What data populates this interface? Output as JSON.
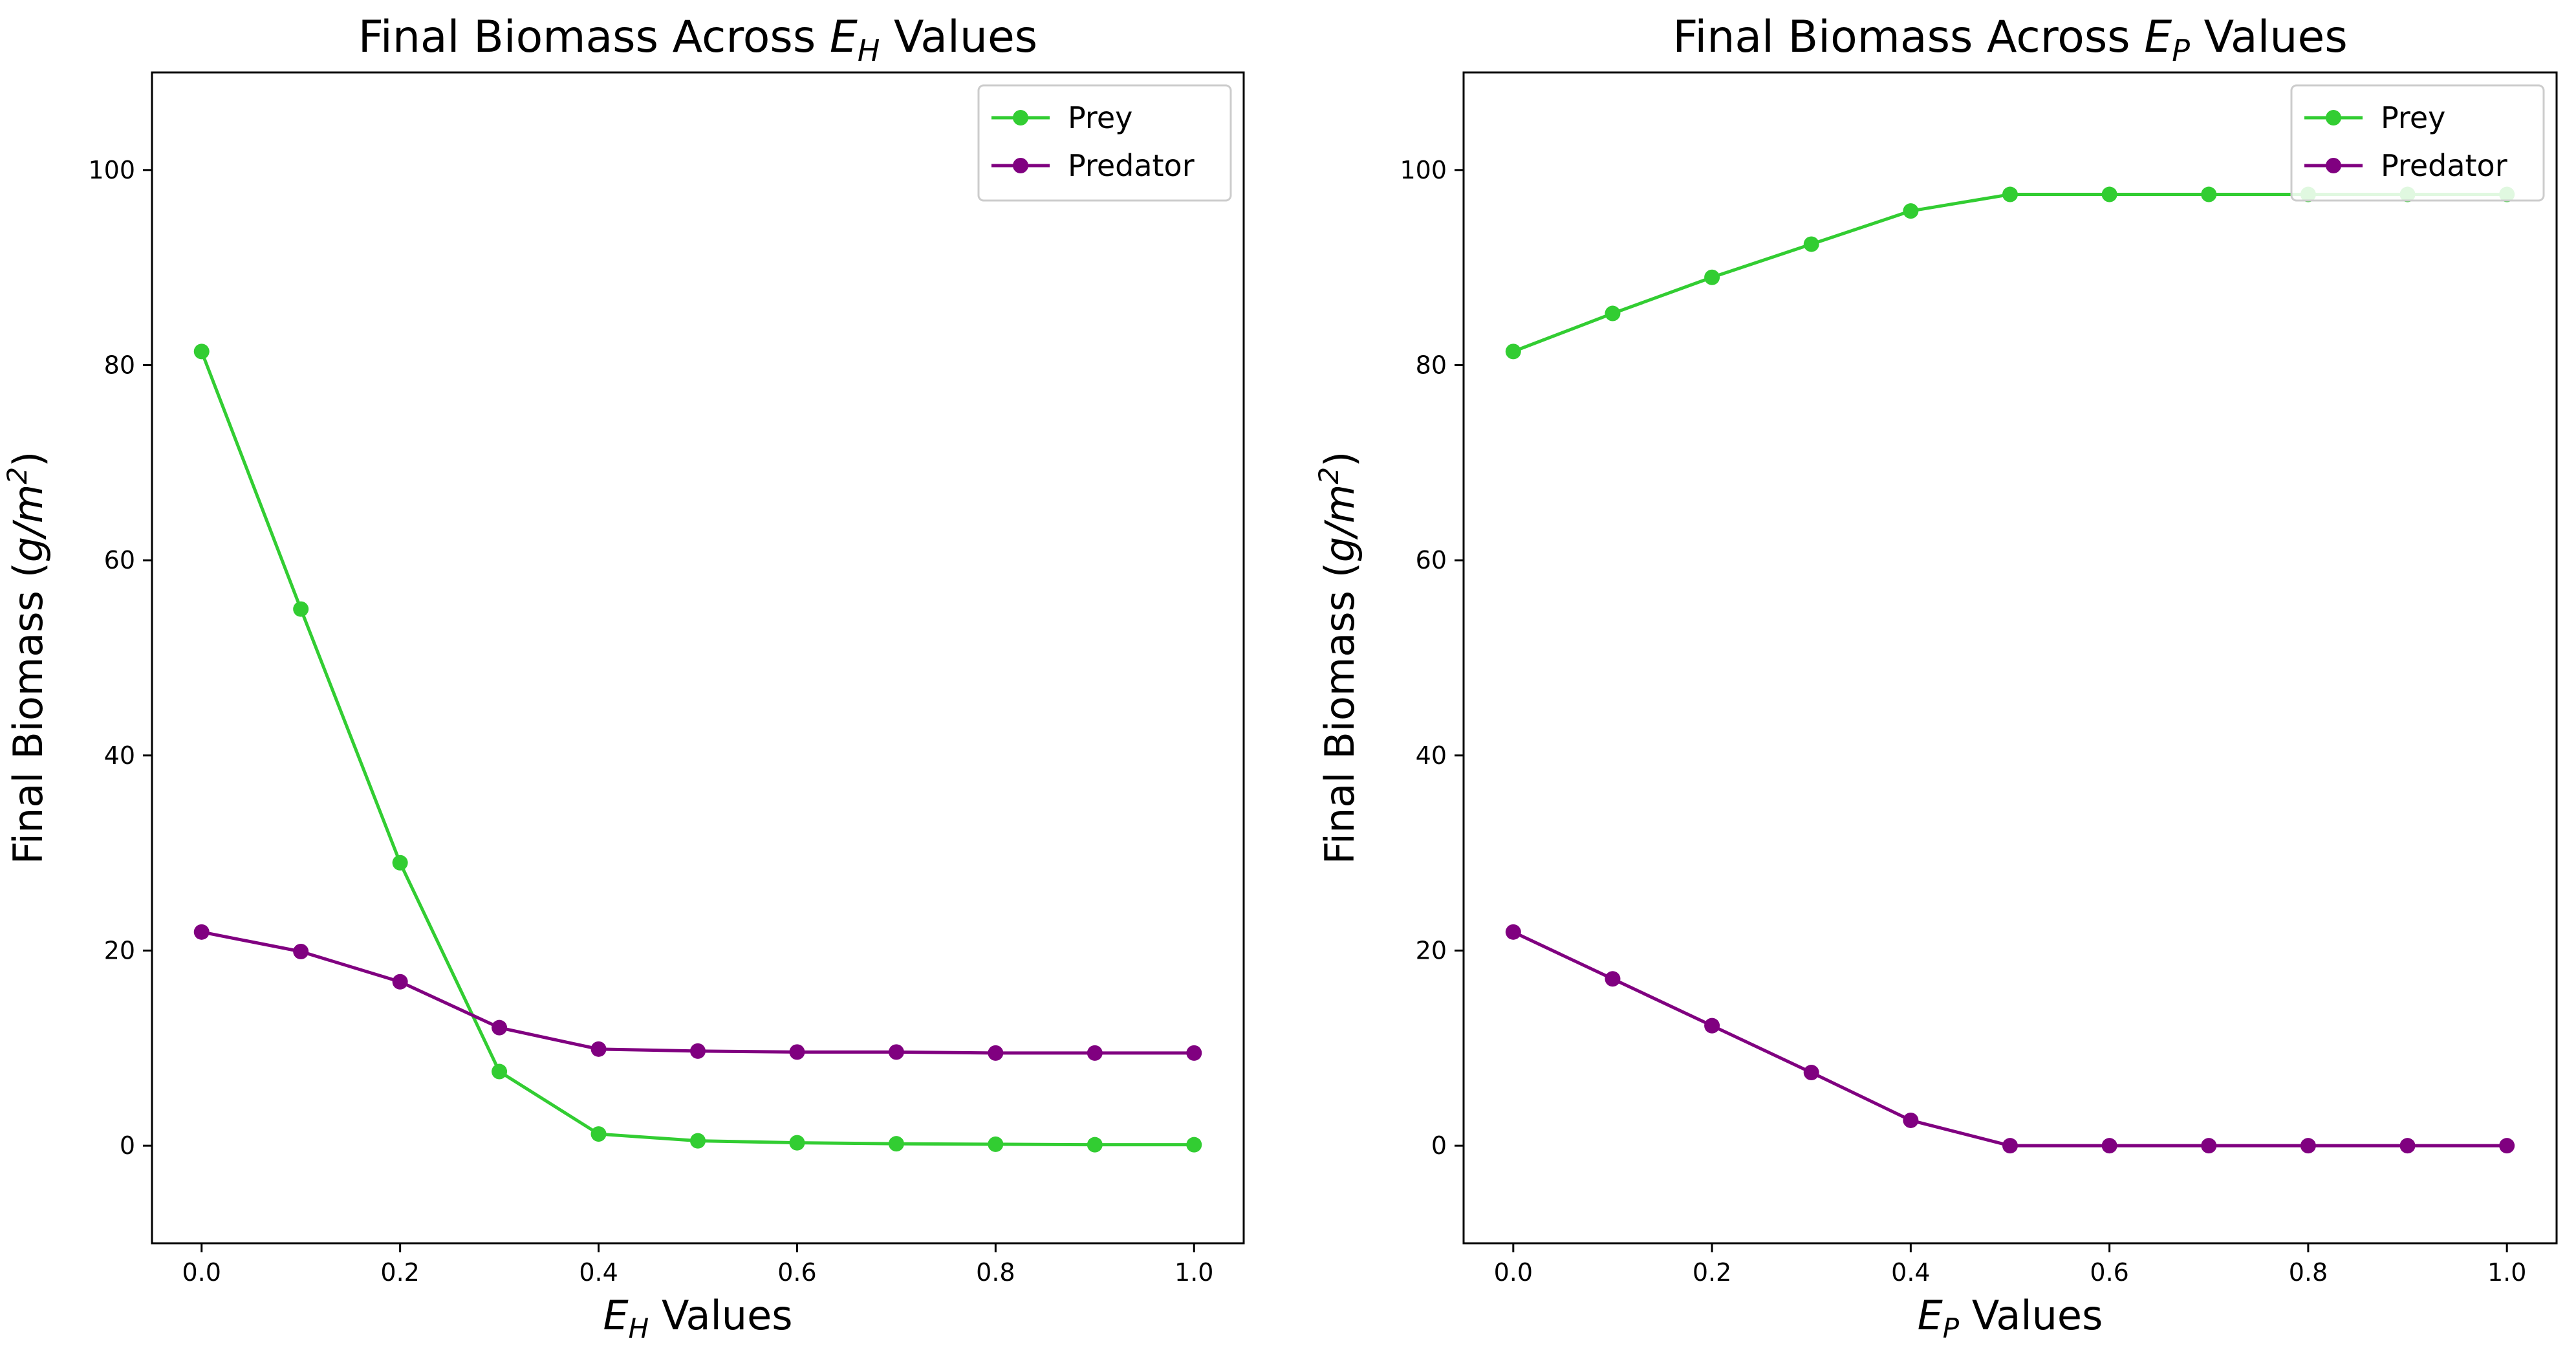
{
  "chart_data": [
    {
      "type": "line",
      "title": "Final Biomass Across E_H Values",
      "title_parts": {
        "prefix": "Final Biomass Across ",
        "symbol": "E",
        "subscript": "H",
        "suffix": " Values"
      },
      "xlabel_parts": {
        "symbol": "E",
        "subscript": "H",
        "suffix": " Values"
      },
      "ylabel_parts": {
        "prefix": "Final Biomass (",
        "unit": "g/m",
        "superscript": "2",
        "suffix": ")"
      },
      "x": [
        0.0,
        0.1,
        0.2,
        0.3,
        0.4,
        0.5,
        0.6,
        0.7,
        0.8,
        0.9,
        1.0
      ],
      "xlim": [
        -0.05,
        1.05
      ],
      "ylim": [
        -10,
        110
      ],
      "xticks": [
        "0.0",
        "0.2",
        "0.4",
        "0.6",
        "0.8",
        "1.0"
      ],
      "yticks": [
        "0",
        "20",
        "40",
        "60",
        "80",
        "100"
      ],
      "legend_position": "top-right",
      "grid": false,
      "series": [
        {
          "name": "Prey",
          "color": "#32cd32",
          "values": [
            81.4,
            55.0,
            29.0,
            7.6,
            1.2,
            0.5,
            0.3,
            0.2,
            0.15,
            0.1,
            0.1
          ]
        },
        {
          "name": "Predator",
          "color": "#800080",
          "values": [
            21.9,
            19.9,
            16.8,
            12.1,
            9.9,
            9.7,
            9.6,
            9.6,
            9.5,
            9.5,
            9.5
          ]
        }
      ]
    },
    {
      "type": "line",
      "title": "Final Biomass Across E_P Values",
      "title_parts": {
        "prefix": "Final Biomass Across ",
        "symbol": "E",
        "subscript": "P",
        "suffix": " Values"
      },
      "xlabel_parts": {
        "symbol": "E",
        "subscript": "P",
        "suffix": " Values"
      },
      "ylabel_parts": {
        "prefix": "Final Biomass (",
        "unit": "g/m",
        "superscript": "2",
        "suffix": ")"
      },
      "x": [
        0.0,
        0.1,
        0.2,
        0.3,
        0.4,
        0.5,
        0.6,
        0.7,
        0.8,
        0.9,
        1.0
      ],
      "xlim": [
        -0.05,
        1.05
      ],
      "ylim": [
        -10,
        110
      ],
      "xticks": [
        "0.0",
        "0.2",
        "0.4",
        "0.6",
        "0.8",
        "1.0"
      ],
      "yticks": [
        "0",
        "20",
        "40",
        "60",
        "80",
        "100"
      ],
      "legend_position": "top-right",
      "grid": false,
      "series": [
        {
          "name": "Prey",
          "color": "#32cd32",
          "values": [
            81.4,
            85.3,
            89.0,
            92.4,
            95.8,
            97.5,
            97.5,
            97.5,
            97.5,
            97.5,
            97.5
          ]
        },
        {
          "name": "Predator",
          "color": "#800080",
          "values": [
            21.9,
            17.1,
            12.3,
            7.5,
            2.6,
            0.0,
            0.0,
            0.0,
            0.0,
            0.0,
            0.0
          ]
        }
      ]
    }
  ]
}
